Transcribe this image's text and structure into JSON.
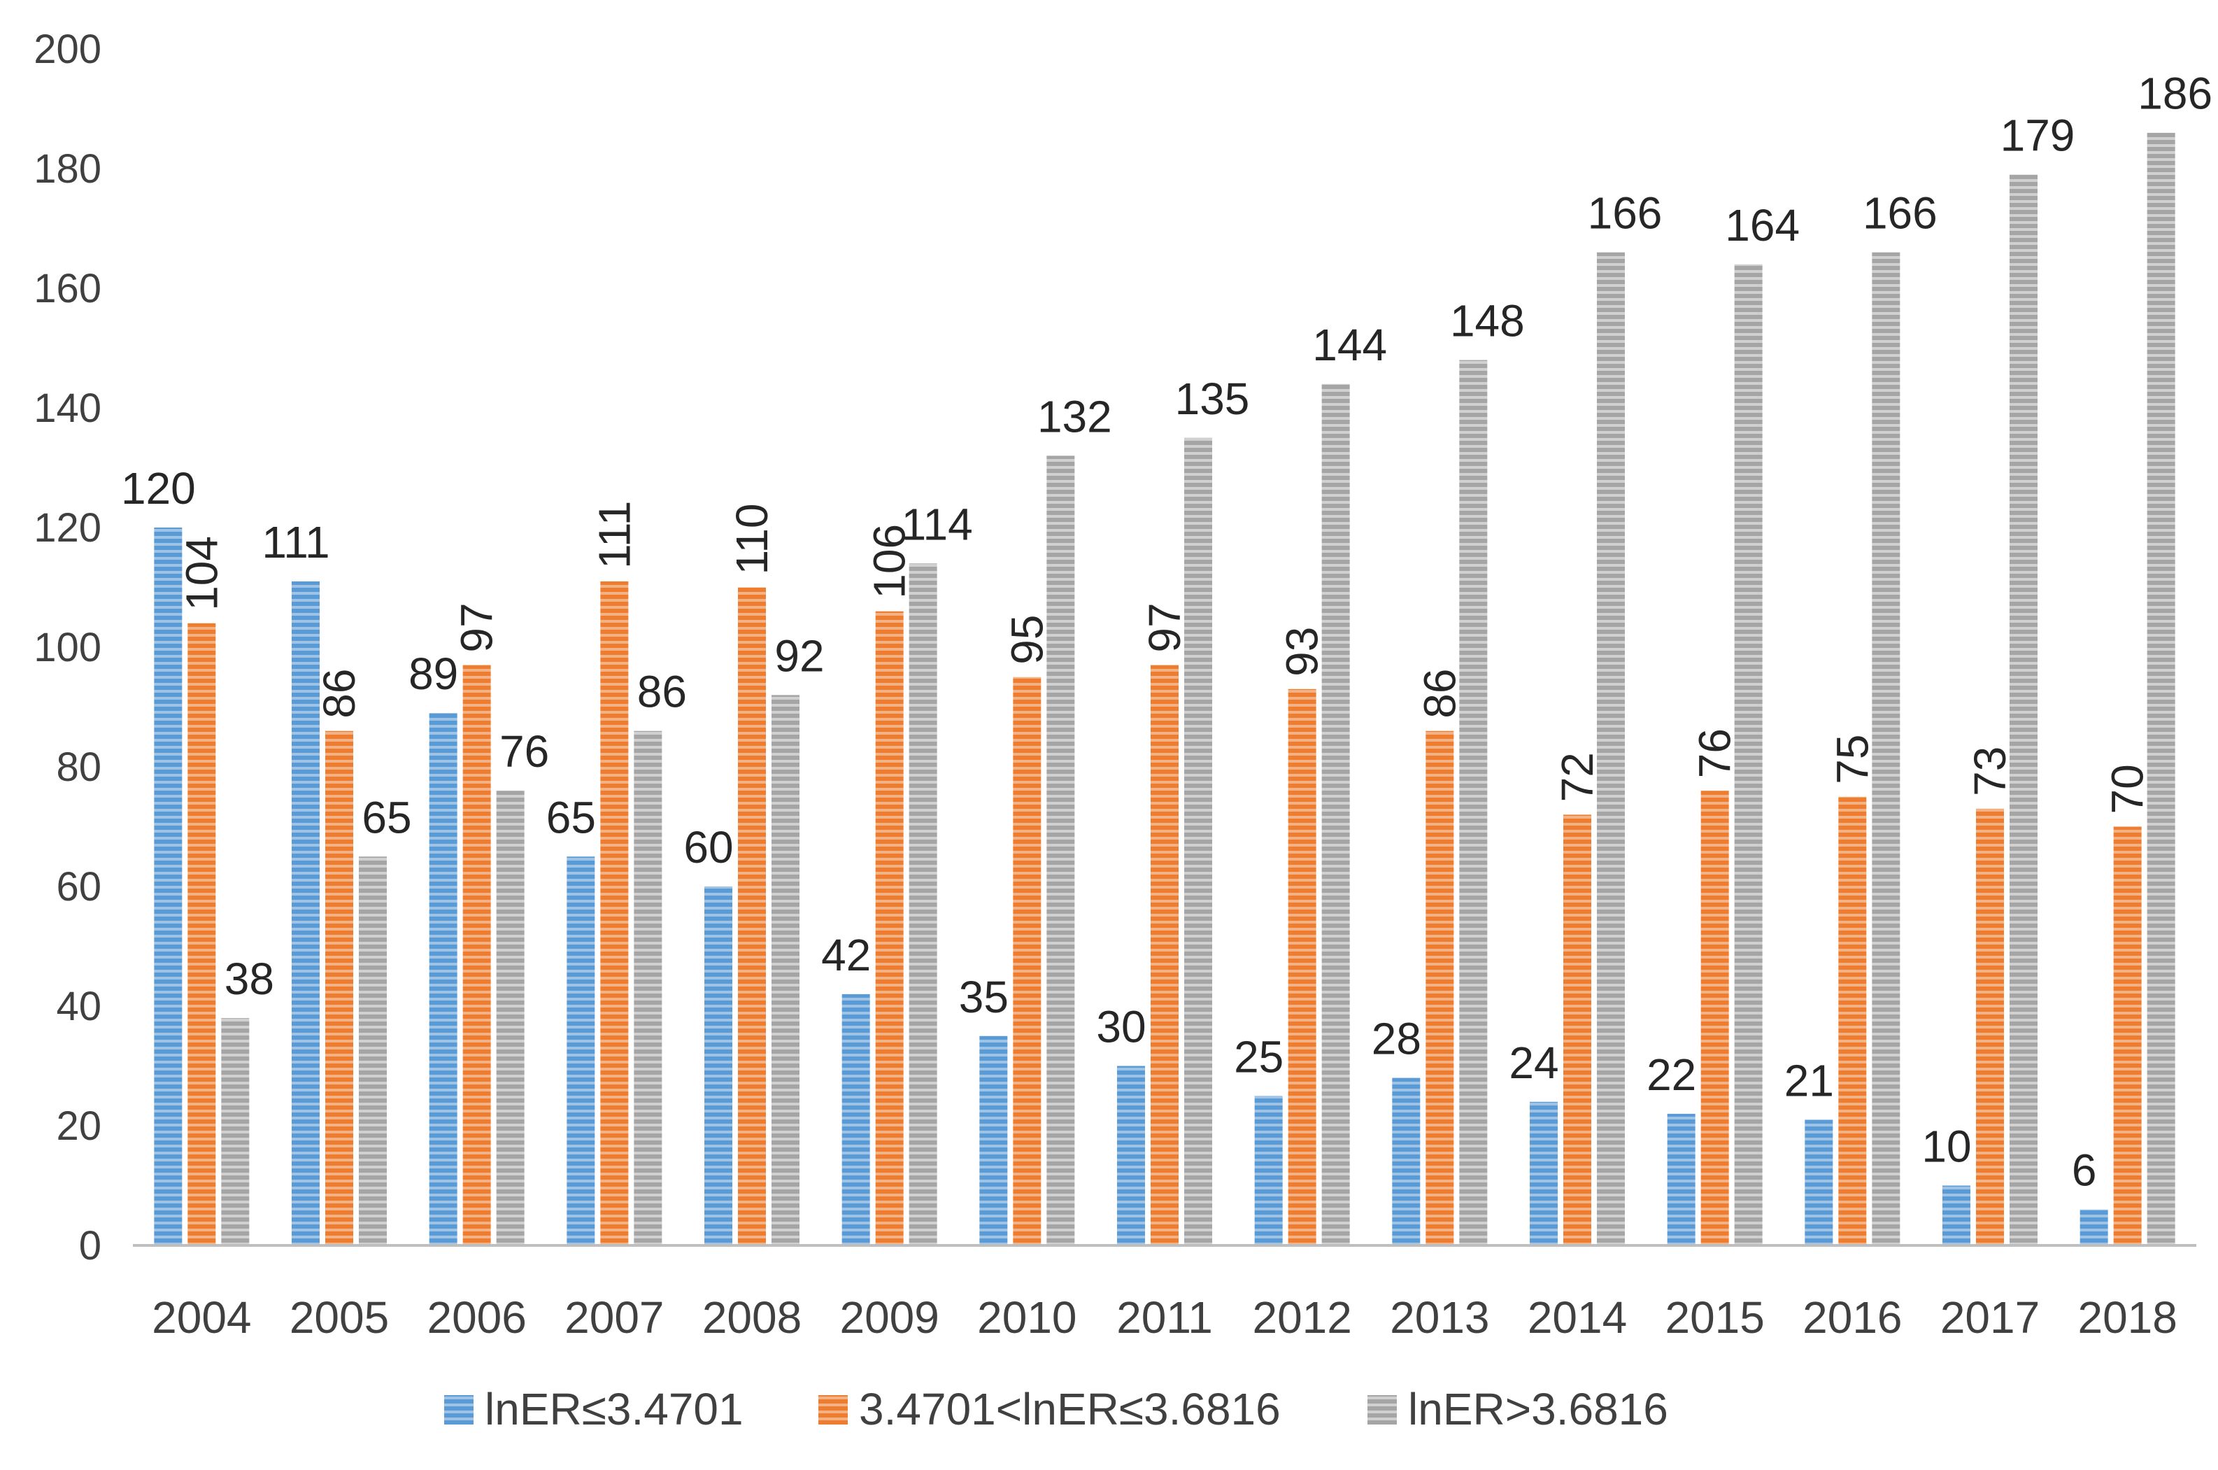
{
  "chart_data": {
    "type": "bar",
    "categories": [
      "2004",
      "2005",
      "2006",
      "2007",
      "2008",
      "2009",
      "2010",
      "2011",
      "2012",
      "2013",
      "2014",
      "2015",
      "2016",
      "2017",
      "2018"
    ],
    "series": [
      {
        "name": "lnER≤3.4701",
        "color": "#5B9BD5",
        "values": [
          120,
          111,
          89,
          65,
          60,
          42,
          35,
          30,
          25,
          28,
          24,
          22,
          21,
          10,
          6
        ]
      },
      {
        "name": "3.4701<lnER≤3.6816",
        "color": "#ED7D31",
        "values": [
          104,
          86,
          97,
          111,
          110,
          106,
          95,
          97,
          93,
          86,
          72,
          76,
          75,
          73,
          70
        ]
      },
      {
        "name": "lnER>3.6816",
        "color": "#A5A5A5",
        "values": [
          38,
          65,
          76,
          86,
          92,
          114,
          132,
          135,
          144,
          148,
          166,
          164,
          166,
          179,
          186
        ]
      }
    ],
    "title": "",
    "xlabel": "",
    "ylabel": "",
    "ylim": [
      0,
      200
    ],
    "yticks": [
      "0",
      "20",
      "40",
      "60",
      "80",
      "100",
      "120",
      "140",
      "160",
      "180",
      "200"
    ],
    "grid": false,
    "legend_position": "bottom"
  }
}
